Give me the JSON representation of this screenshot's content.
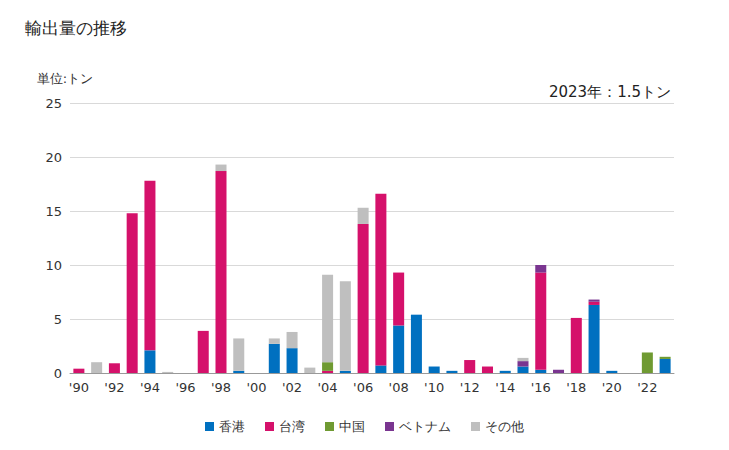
{
  "chart_data": {
    "type": "bar",
    "title": "輸出量の推移",
    "ylabel": "単位:トン",
    "annotation": "2023年：1.5トン",
    "categories": [
      "'90",
      null,
      "'92",
      null,
      "'94",
      null,
      "'96",
      null,
      "'98",
      null,
      "'00",
      null,
      "'02",
      null,
      "'04",
      null,
      "'06",
      null,
      "'08",
      null,
      "'10",
      null,
      "'12",
      null,
      "'14",
      null,
      "'16",
      null,
      "'18",
      null,
      "'20",
      null,
      "'22",
      null
    ],
    "series": [
      {
        "name": "香港",
        "color": "#0070c0",
        "values": [
          0,
          0,
          0,
          0,
          2.1,
          0,
          0,
          0,
          0,
          0.2,
          0,
          2.7,
          2.3,
          0,
          0,
          0.2,
          0,
          0.7,
          4.4,
          5.4,
          0.6,
          0.2,
          0,
          0,
          0.2,
          0.6,
          0.3,
          0,
          0,
          6.3,
          0.2,
          0,
          0,
          1.3
        ]
      },
      {
        "name": "台湾",
        "color": "#d5116b",
        "values": [
          0.4,
          0,
          0.9,
          14.8,
          15.7,
          0,
          0,
          3.9,
          18.7,
          0,
          0,
          0,
          0,
          0,
          0.2,
          0,
          13.8,
          15.9,
          4.9,
          0,
          0,
          0,
          1.2,
          0.6,
          0,
          0,
          9.0,
          0,
          5.1,
          0.3,
          0,
          0,
          0,
          0
        ]
      },
      {
        "name": "中国",
        "color": "#6f9a32",
        "values": [
          0,
          0,
          0,
          0,
          0,
          0,
          0,
          0,
          0,
          0,
          0,
          0,
          0,
          0,
          0.8,
          0,
          0,
          0,
          0,
          0,
          0,
          0,
          0,
          0,
          0,
          0,
          0,
          0,
          0,
          0,
          0,
          0,
          1.9,
          0.2
        ]
      },
      {
        "name": "ベトナム",
        "color": "#7a3590",
        "values": [
          0,
          0,
          0,
          0,
          0,
          0,
          0,
          0,
          0,
          0,
          0,
          0,
          0,
          0,
          0,
          0,
          0,
          0,
          0,
          0,
          0,
          0,
          0,
          0,
          0,
          0.5,
          0.7,
          0.3,
          0,
          0.2,
          0,
          0,
          0,
          0
        ]
      },
      {
        "name": "その他",
        "color": "#bfbfbf",
        "values": [
          0,
          1.0,
          0,
          0,
          0,
          0.1,
          0,
          0,
          0.6,
          3.0,
          0,
          0.5,
          1.5,
          0.5,
          8.1,
          8.3,
          1.5,
          0,
          0,
          0,
          0,
          0,
          0,
          0,
          0,
          0.3,
          0,
          0,
          0,
          0,
          0,
          0,
          0,
          0
        ]
      }
    ],
    "ylim": [
      0,
      25
    ],
    "yticks": [
      0,
      5,
      10,
      15,
      20,
      25
    ],
    "stacked": true,
    "grid": true,
    "legend": "bottom"
  }
}
